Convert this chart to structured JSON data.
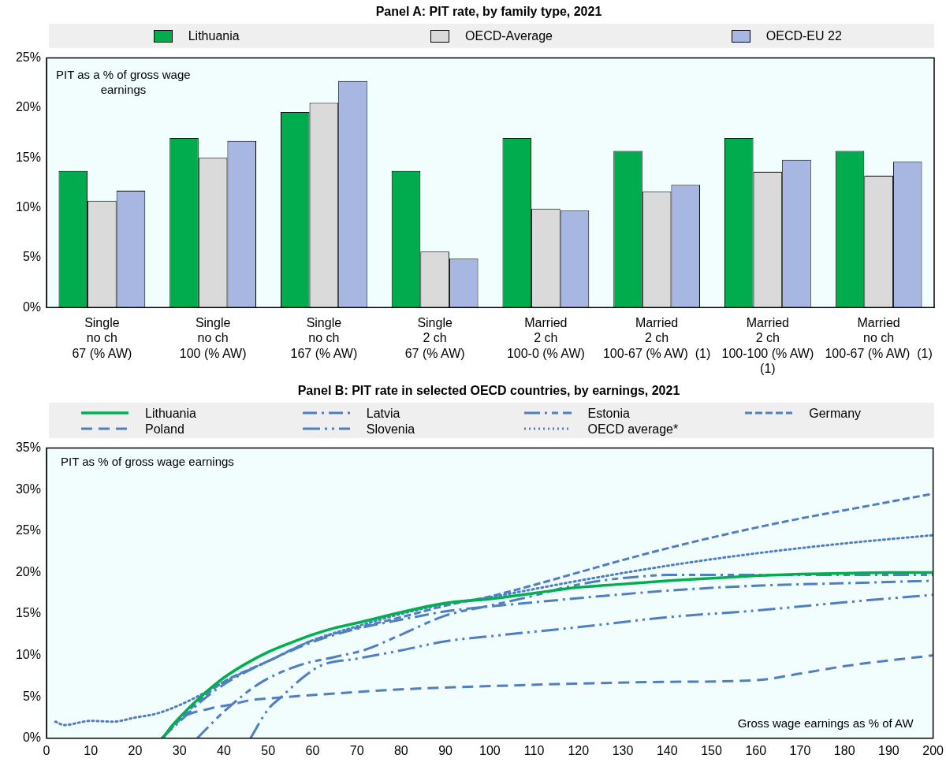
{
  "chart_data": [
    {
      "type": "bar",
      "title": "Panel A: PIT rate, by family type, 2021",
      "ylabel": "PIT as a % of gross wage earnings",
      "categories": [
        "Single\nno ch\n67 (% AW)",
        "Single\nno ch\n100 (% AW)",
        "Single\nno ch\n167 (% AW)",
        "Single\n2 ch\n67 (% AW)",
        "Married\n2 ch\n100-0 (% AW)",
        "Married\n2 ch\n100-67 (% AW)  (1)",
        "Married\n2 ch\n100-100 (% AW)\n(1)",
        "Married\nno ch\n100-67 (% AW)  (1)"
      ],
      "series": [
        {
          "name": "Lithuania",
          "color": "#00ac4e",
          "values": [
            13.7,
            17.0,
            19.6,
            13.7,
            17.0,
            15.7,
            17.0,
            15.7
          ]
        },
        {
          "name": "OECD-Average",
          "color": "#dadada",
          "values": [
            10.7,
            15.0,
            20.5,
            5.6,
            9.9,
            11.6,
            13.6,
            13.2
          ]
        },
        {
          "name": "OECD-EU 22",
          "color": "#a7b7e2",
          "values": [
            11.7,
            16.7,
            22.7,
            4.9,
            9.7,
            12.3,
            14.8,
            14.6
          ]
        }
      ],
      "ylim": [
        0,
        25
      ],
      "yticks": [
        {
          "value": 0,
          "label": "0%"
        },
        {
          "value": 5,
          "label": "5%"
        },
        {
          "value": 10,
          "label": "10%"
        },
        {
          "value": 15,
          "label": "15%"
        },
        {
          "value": 20,
          "label": "20%"
        },
        {
          "value": 25,
          "label": "25%"
        }
      ],
      "legend": "top"
    },
    {
      "type": "line",
      "title": "Panel B: PIT rate in selected OECD countries, by earnings, 2021",
      "ylabel": "PIT as % of gross wage earnings",
      "xlabel": "Gross wage earnings as % of AW",
      "marker": "none",
      "series": [
        {
          "name": "Lithuania",
          "color": "#00b04f",
          "line_style": "solid",
          "x": [
            26.3,
            28,
            30,
            35,
            40,
            45,
            50,
            55,
            60,
            65,
            70,
            80,
            90,
            100,
            110,
            120,
            130,
            140,
            150,
            160,
            170,
            180,
            190,
            200
          ],
          "values": [
            0,
            1.3,
            2.5,
            5.1,
            7.3,
            9,
            10.4,
            11.5,
            12.5,
            13.3,
            13.9,
            15.2,
            16.3,
            16.8,
            17.5,
            18.2,
            18.6,
            19,
            19.3,
            19.6,
            19.8,
            19.9,
            20,
            20
          ]
        },
        {
          "name": "Poland",
          "color": "#4f7fc0",
          "line_style": "dashed",
          "x": [
            26,
            30,
            37,
            42,
            46,
            50,
            65,
            80,
            95,
            120,
            140,
            160,
            170,
            180,
            200
          ],
          "values": [
            0,
            2.3,
            3.6,
            4.1,
            4.6,
            4.8,
            5.4,
            5.9,
            6.2,
            6.6,
            6.8,
            7,
            7.8,
            8.7,
            10
          ]
        },
        {
          "name": "Latvia",
          "color": "#4f7fc0",
          "line_style": "dashed",
          "x": [
            26,
            30,
            35,
            40,
            45,
            50,
            60,
            70,
            80,
            90,
            100,
            110,
            120,
            140,
            160,
            180,
            200
          ],
          "values": [
            0,
            2,
            4.5,
            6.5,
            8,
            9.3,
            11.6,
            13.2,
            14.3,
            15.3,
            15.9,
            16.4,
            16.9,
            17.8,
            18.4,
            18.7,
            19
          ]
        },
        {
          "name": "Slovenia",
          "color": "#4f7fc0",
          "line_style": "dashed",
          "x": [
            46,
            50,
            53,
            58,
            62,
            70,
            80,
            90,
            100,
            120,
            140,
            160,
            180,
            200
          ],
          "values": [
            0,
            3.5,
            5,
            7.4,
            8.8,
            9.6,
            10.6,
            11.7,
            12.3,
            13.4,
            14.6,
            15.4,
            16.4,
            17.3
          ]
        },
        {
          "name": "Estonia",
          "color": "#4f7fc0",
          "line_style": "dashed",
          "x": [
            34,
            40,
            48,
            57,
            65,
            72,
            80,
            90,
            100,
            110,
            117,
            125,
            136,
            140,
            160,
            180,
            200
          ],
          "values": [
            0,
            3.2,
            6.6,
            8.8,
            9.8,
            10.7,
            12.5,
            14.8,
            16,
            17.2,
            18.2,
            19,
            19.6,
            19.7,
            19.7,
            19.7,
            19.7
          ]
        },
        {
          "name": "OECD average*",
          "color": "#4f7fc0",
          "line_style": "dotted",
          "x": [
            2,
            4,
            10,
            15,
            20,
            25,
            30,
            35,
            40,
            50,
            60,
            70,
            80,
            90,
            100,
            110,
            120,
            140,
            160,
            180,
            200
          ],
          "values": [
            2,
            1.6,
            2.1,
            2,
            2.5,
            3,
            4,
            5.3,
            6.8,
            9.3,
            11.8,
            13.5,
            15,
            16.2,
            17,
            18,
            19,
            20.8,
            22.3,
            23.5,
            24.5
          ]
        },
        {
          "name": "Germany",
          "color": "#4f7fc0",
          "line_style": "dashed",
          "x": [
            26,
            30,
            35,
            40,
            50,
            60,
            70,
            80,
            90,
            100,
            110,
            120,
            130,
            140,
            150,
            160,
            170,
            180,
            190,
            200
          ],
          "values": [
            0,
            2.2,
            4.8,
            6.8,
            9.3,
            11.8,
            13.3,
            14.6,
            16,
            17.1,
            18.5,
            20,
            21.5,
            22.9,
            24.2,
            25.4,
            26.5,
            27.5,
            28.5,
            29.5
          ]
        }
      ],
      "xlim": [
        0,
        200
      ],
      "xticks": [
        0,
        10,
        20,
        30,
        40,
        50,
        60,
        70,
        80,
        90,
        100,
        110,
        120,
        130,
        140,
        150,
        160,
        170,
        180,
        190,
        200
      ],
      "ylim": [
        0,
        35
      ],
      "yticks": [
        {
          "value": 0,
          "label": "0%"
        },
        {
          "value": 5,
          "label": "5%"
        },
        {
          "value": 10,
          "label": "10%"
        },
        {
          "value": 15,
          "label": "15%"
        },
        {
          "value": 20,
          "label": "20%"
        },
        {
          "value": 25,
          "label": "25%"
        },
        {
          "value": 30,
          "label": "30%"
        },
        {
          "value": 35,
          "label": "35%"
        }
      ],
      "legend": "top"
    }
  ]
}
